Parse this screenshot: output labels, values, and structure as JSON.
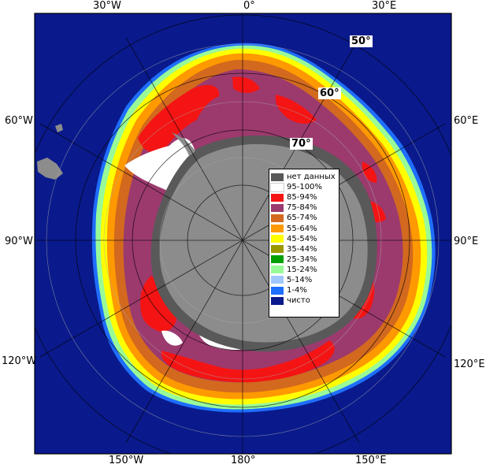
{
  "map": {
    "colors": {
      "ocean": "#0a1a8c",
      "land": "#8c8c8c",
      "no_data": "#595959",
      "ice_95_100": "#ffffff",
      "ice_85_94": "#f41414",
      "ice_75_84": "#9c3a6e",
      "ice_65_74": "#d2691e",
      "ice_55_64": "#ff9900",
      "ice_45_54": "#ffff00",
      "ice_35_44": "#9a9a00",
      "ice_25_34": "#00a000",
      "ice_15_24": "#98fb98",
      "ice_5_14": "#a0c8ff",
      "ice_1_4": "#1e6eff",
      "clear": "#0a1a8c",
      "border": "#000000",
      "grid": "#aaaaaa"
    },
    "longitude_labels": {
      "top": [
        "30°W",
        "0°",
        "30°E"
      ],
      "left": [
        "60°W",
        "90°W",
        "120°W"
      ],
      "right": [
        "60°E",
        "90°E",
        "120°E"
      ],
      "bottom": [
        "150°W",
        "180°",
        "150°E"
      ]
    },
    "latitude_labels": [
      "50°",
      "60°",
      "70°"
    ]
  },
  "legend": {
    "items": [
      {
        "label": "нет данных",
        "color": "#595959"
      },
      {
        "label": "95-100%",
        "color": "#ffffff"
      },
      {
        "label": "85-94%",
        "color": "#f41414"
      },
      {
        "label": "75-84%",
        "color": "#9c3a6e"
      },
      {
        "label": "65-74%",
        "color": "#d2691e"
      },
      {
        "label": "55-64%",
        "color": "#ff9900"
      },
      {
        "label": "45-54%",
        "color": "#ffff00"
      },
      {
        "label": "35-44%",
        "color": "#9a9a00"
      },
      {
        "label": "25-34%",
        "color": "#00a000"
      },
      {
        "label": "15-24%",
        "color": "#98fb98"
      },
      {
        "label": "5-14%",
        "color": "#a0c8ff"
      },
      {
        "label": "1-4%",
        "color": "#1e6eff"
      },
      {
        "label": "чисто",
        "color": "#0a1a8c"
      }
    ]
  }
}
